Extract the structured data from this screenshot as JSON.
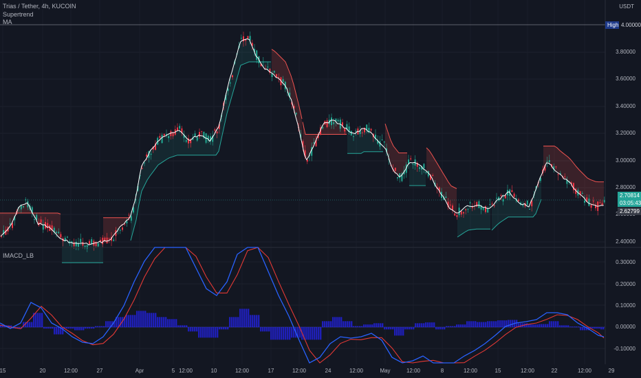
{
  "header": {
    "symbol_title": "Trias / Tether, 4h, KUCOIN",
    "indicator_1": "Supertrend",
    "indicator_2": "MA",
    "indicator_3": "IMACD_LB",
    "currency": "USDT"
  },
  "price_axis": {
    "ticks": [
      "3.80000",
      "3.60000",
      "3.40000",
      "3.20000",
      "3.00000",
      "2.80000",
      "2.60000",
      "2.40000"
    ],
    "high_label": "High",
    "high_value": "4.00000",
    "last_price": "2.70814",
    "countdown": "03:05:43",
    "low_marker": "2.62799"
  },
  "indicator_axis": {
    "ticks": [
      "0.30000",
      "0.20000",
      "0.10000",
      "0.00000",
      "-0.10000"
    ]
  },
  "time_axis": {
    "ticks": [
      "15",
      "20",
      "12:00",
      "27",
      "Apr",
      "5",
      "12:00",
      "10",
      "12:00",
      "17",
      "12:00",
      "24",
      "12:00",
      "May",
      "12:00",
      "8",
      "12:00",
      "15",
      "12:00",
      "22",
      "12:00",
      "29"
    ]
  },
  "colors": {
    "background": "#131722",
    "bull": "#26a69a",
    "bear": "#ef5350",
    "up_candle": "#22ab94",
    "down_candle": "#f23645",
    "ma": "#ffffff",
    "macd": "#2962ff",
    "signal": "#e53935",
    "histogram": "#1f1fb8",
    "last_price": "#26a69a",
    "high_badge": "#1e3a8a"
  }
}
